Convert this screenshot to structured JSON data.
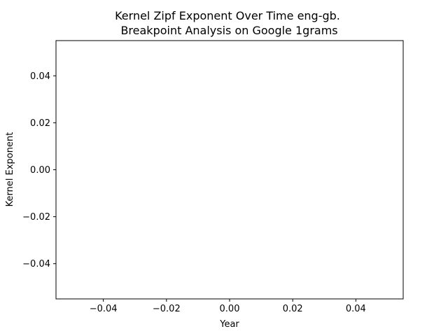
{
  "chart_data": {
    "type": "line",
    "title_line1": "Kernel Zipf Exponent Over Time eng-gb.",
    "title_line2": " Breakpoint Analysis on Google 1grams",
    "xlabel": "Year",
    "ylabel": "Kernel Exponent",
    "series": [],
    "xlim": [
      -0.055,
      0.055
    ],
    "ylim": [
      -0.055,
      0.055
    ],
    "x_ticks": [
      -0.04,
      -0.02,
      0.0,
      0.02,
      0.04
    ],
    "x_tick_labels": [
      "−0.04",
      "−0.02",
      "0.00",
      "0.02",
      "0.04"
    ],
    "y_ticks": [
      -0.04,
      -0.02,
      0.0,
      0.02,
      0.04
    ],
    "y_tick_labels": [
      "−0.04",
      "−0.02",
      "0.00",
      "0.02",
      "0.04"
    ],
    "grid": false,
    "legend": "none"
  }
}
